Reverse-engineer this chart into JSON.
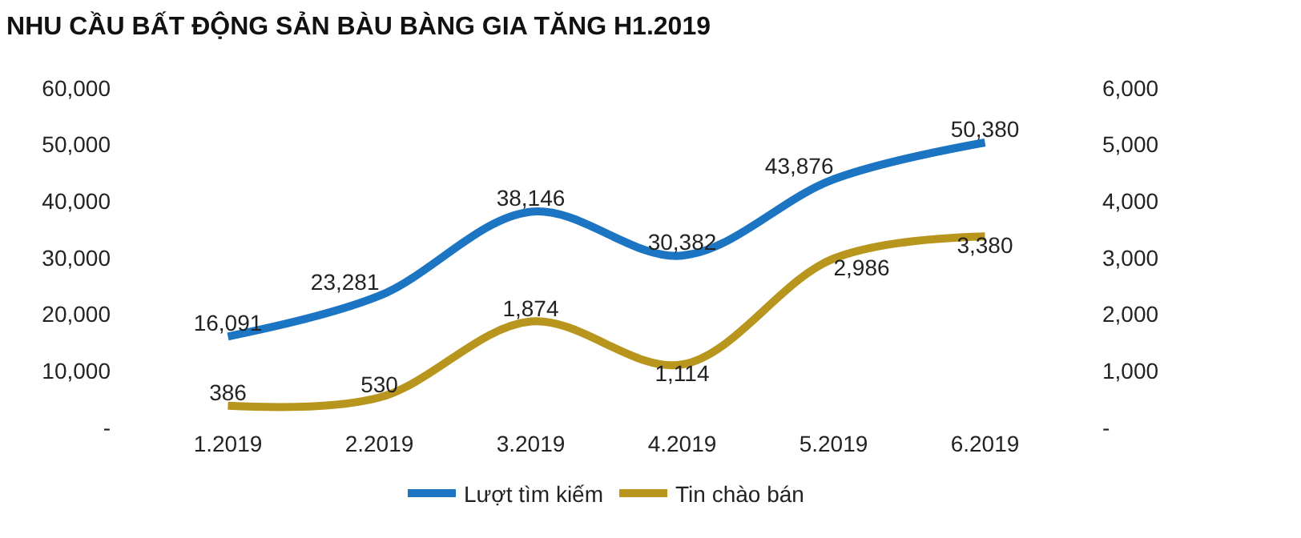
{
  "chart_data": {
    "type": "line",
    "title": "NHU CẦU BẤT ĐỘNG SẢN BÀU BÀNG GIA TĂNG H1.2019",
    "categories": [
      "1.2019",
      "2.2019",
      "3.2019",
      "4.2019",
      "5.2019",
      "6.2019"
    ],
    "series": [
      {
        "name": "Lượt tìm kiếm",
        "color": "#1b75c2",
        "values": [
          16091,
          23281,
          38146,
          30382,
          43876,
          50380
        ],
        "value_labels": [
          "16,091",
          "23,281",
          "38,146",
          "30,382",
          "43,876",
          "50,380"
        ]
      },
      {
        "name": "Tin chào bán",
        "color": "#b8961e",
        "axis": "y2",
        "values": [
          386,
          530,
          1874,
          1114,
          2986,
          3380
        ],
        "value_labels": [
          "386",
          "530",
          "1,874",
          "1,114",
          "2,986",
          "3,380"
        ]
      }
    ],
    "ylim": [
      0,
      60000
    ],
    "yticks": [
      {
        "value": 0,
        "label": "-"
      },
      {
        "value": 10000,
        "label": "10,000"
      },
      {
        "value": 20000,
        "label": "20,000"
      },
      {
        "value": 30000,
        "label": "30,000"
      },
      {
        "value": 40000,
        "label": "40,000"
      },
      {
        "value": 50000,
        "label": "50,000"
      },
      {
        "value": 60000,
        "label": "60,000"
      }
    ],
    "y2lim": [
      0,
      6000
    ],
    "y2ticks": [
      {
        "value": 0,
        "label": "-"
      },
      {
        "value": 1000,
        "label": "1,000"
      },
      {
        "value": 2000,
        "label": "2,000"
      },
      {
        "value": 3000,
        "label": "3,000"
      },
      {
        "value": 4000,
        "label": "4,000"
      },
      {
        "value": 5000,
        "label": "5,000"
      },
      {
        "value": 6000,
        "label": "6,000"
      }
    ],
    "legend": "bottom",
    "marker": "none",
    "line_style": "solid"
  }
}
